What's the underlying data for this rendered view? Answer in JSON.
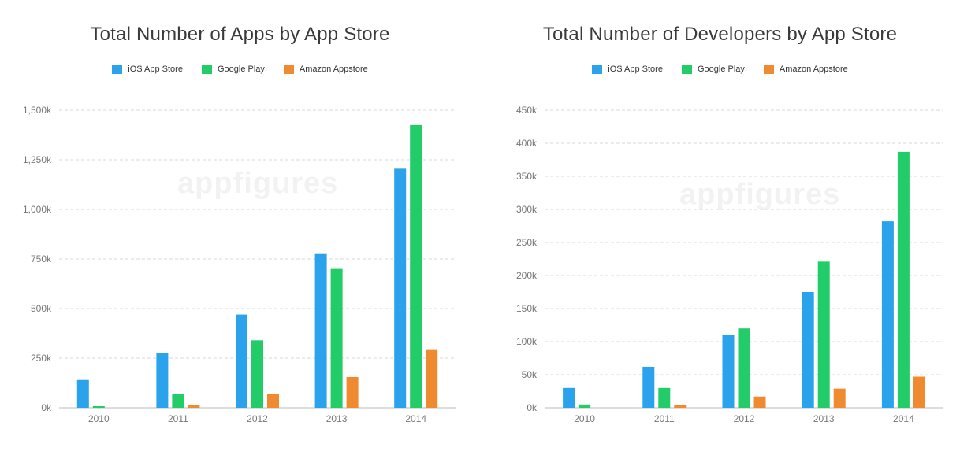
{
  "colors": {
    "ios": "#2aa3ec",
    "google": "#22cc68",
    "amazon": "#f08a30",
    "grid": "#d9d9d9",
    "axis_text": "#777777"
  },
  "legend_labels": [
    "iOS App Store",
    "Google Play",
    "Amazon Appstore"
  ],
  "watermark": "appfigures",
  "chart_data": [
    {
      "type": "bar",
      "title": "Total Number of Apps by App Store",
      "xlabel": "",
      "ylabel": "",
      "categories": [
        "2010",
        "2011",
        "2012",
        "2013",
        "2014"
      ],
      "ylim": [
        0,
        1500
      ],
      "yticks": [
        0,
        250,
        500,
        750,
        1000,
        1250,
        1500
      ],
      "ytick_labels": [
        "0k",
        "250k",
        "500k",
        "750k",
        "1,000k",
        "1,250k",
        "1,500k"
      ],
      "grid": true,
      "legend_position": "top-center",
      "series": [
        {
          "name": "iOS App Store",
          "values": [
            140,
            275,
            470,
            775,
            1205
          ]
        },
        {
          "name": "Google Play",
          "values": [
            8,
            70,
            340,
            700,
            1425
          ]
        },
        {
          "name": "Amazon Appstore",
          "values": [
            0,
            15,
            68,
            155,
            295
          ]
        }
      ]
    },
    {
      "type": "bar",
      "title": "Total Number of Developers by App Store",
      "xlabel": "",
      "ylabel": "",
      "categories": [
        "2010",
        "2011",
        "2012",
        "2013",
        "2014"
      ],
      "ylim": [
        0,
        450
      ],
      "yticks": [
        0,
        50,
        100,
        150,
        200,
        250,
        300,
        350,
        400,
        450
      ],
      "ytick_labels": [
        "0k",
        "50k",
        "100k",
        "150k",
        "200k",
        "250k",
        "300k",
        "350k",
        "400k",
        "450k"
      ],
      "grid": true,
      "legend_position": "top-center",
      "series": [
        {
          "name": "iOS App Store",
          "values": [
            30,
            62,
            110,
            175,
            282
          ]
        },
        {
          "name": "Google Play",
          "values": [
            5,
            30,
            120,
            221,
            387
          ]
        },
        {
          "name": "Amazon Appstore",
          "values": [
            0,
            4,
            17,
            29,
            47
          ]
        }
      ]
    }
  ]
}
